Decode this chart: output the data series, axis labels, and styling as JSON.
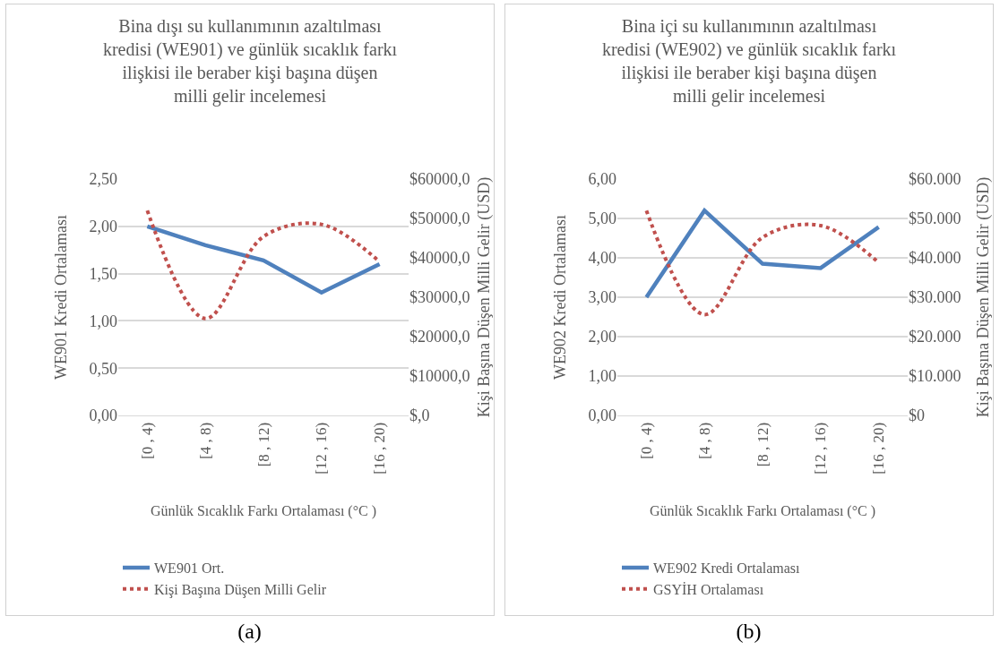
{
  "chart_data": [
    {
      "type": "line",
      "title": "Bina dışı su kullanımının azaltılması kredisi (WE901) ve günlük sıcaklık farkı ilişkisi ile beraber kişi başına düşen milli gelir incelemesi",
      "xlabel": "Günlük Sıcaklık Farkı Ortalaması (°C )",
      "ylabel": "WE901 Kredi Ortalaması",
      "y2label": "Kişi Başına Düşen Milli Gelir (USD)",
      "categories": [
        "[0 , 4)",
        "[4 , 8)",
        "[8 , 12)",
        "[12 , 16)",
        "[16 , 20)"
      ],
      "series": [
        {
          "name": "WE901 Ort.",
          "color": "#4f81bd",
          "line_style": "solid",
          "values": [
            2.0,
            1.8,
            1.64,
            1.3,
            1.6
          ]
        },
        {
          "name": "Kişi Başına Düşen Milli Gelir",
          "color": "#c0504d",
          "line_style": "dotted",
          "axis": "y2",
          "values": [
            52000,
            24600,
            45400,
            48500,
            39000
          ]
        }
      ],
      "ylim": [
        0,
        2.5
      ],
      "yticks": [
        {
          "value": 0,
          "label": "0,00"
        },
        {
          "value": 0.5,
          "label": "0,50"
        },
        {
          "value": 1,
          "label": "1,00"
        },
        {
          "value": 1.5,
          "label": "1,50"
        },
        {
          "value": 2,
          "label": "2,00"
        },
        {
          "value": 2.5,
          "label": "2,50"
        }
      ],
      "y2lim": [
        0,
        60000
      ],
      "y2ticks": [
        {
          "value": 0,
          "label": "$,0"
        },
        {
          "value": 10000,
          "label": "$10000,0"
        },
        {
          "value": 20000,
          "label": "$20000,0"
        },
        {
          "value": 30000,
          "label": "$30000,0"
        },
        {
          "value": 40000,
          "label": "$40000,0"
        },
        {
          "value": 50000,
          "label": "$50000,0"
        },
        {
          "value": 60000,
          "label": "$60000,0"
        }
      ],
      "grid": "y",
      "legend": "bottom",
      "marker": "none",
      "annotations": [
        "(a)"
      ]
    },
    {
      "type": "line",
      "title": "Bina içi su kullanımının azaltılması kredisi (WE902) ve günlük sıcaklık farkı ilişkisi ile beraber kişi başına düşen milli gelir incelemesi",
      "xlabel": "Günlük Sıcaklık Farkı Ortalaması (°C )",
      "ylabel": "WE902 Kredi Ortalaması",
      "y2label": "Kişi Başına Düşen Milli Gelir (USD)",
      "categories": [
        "[0 , 4)",
        "[4 , 8)",
        "[8 , 12)",
        "[12 , 16)",
        "[16 , 20)"
      ],
      "series": [
        {
          "name": "WE902 Kredi Ortalaması",
          "color": "#4f81bd",
          "line_style": "solid",
          "values": [
            3.0,
            5.2,
            3.85,
            3.74,
            4.78
          ]
        },
        {
          "name": "GSYİH Ortalaması",
          "color": "#c0504d",
          "line_style": "dotted",
          "axis": "y2",
          "values": [
            52000,
            25600,
            45200,
            48200,
            38800
          ]
        }
      ],
      "ylim": [
        0,
        6
      ],
      "yticks": [
        {
          "value": 0,
          "label": "0,00"
        },
        {
          "value": 1,
          "label": "1,00"
        },
        {
          "value": 2,
          "label": "2,00"
        },
        {
          "value": 3,
          "label": "3,00"
        },
        {
          "value": 4,
          "label": "4,00"
        },
        {
          "value": 5,
          "label": "5,00"
        },
        {
          "value": 6,
          "label": "6,00"
        }
      ],
      "y2lim": [
        0,
        60000
      ],
      "y2ticks": [
        {
          "value": 0,
          "label": "$0"
        },
        {
          "value": 10000,
          "label": "$10.000"
        },
        {
          "value": 20000,
          "label": "$20.000"
        },
        {
          "value": 30000,
          "label": "$30.000"
        },
        {
          "value": 40000,
          "label": "$40.000"
        },
        {
          "value": 50000,
          "label": "$50.000"
        },
        {
          "value": 60000,
          "label": "$60.000"
        }
      ],
      "grid": "y",
      "legend": "bottom",
      "marker": "none",
      "annotations": [
        "(b)"
      ]
    }
  ]
}
